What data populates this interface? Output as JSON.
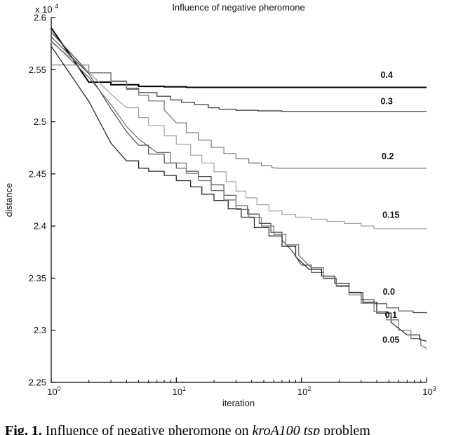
{
  "figure": {
    "title": "Influence of negative pheromone",
    "xlabel": "iteration",
    "ylabel": "distance",
    "y_multiplier": {
      "base": "x 10",
      "exp": "4"
    }
  },
  "caption": {
    "prefix": "Fig. 1.",
    "body": " Influence of negative pheromone on ",
    "emphasis": "kroA100 tsp",
    "tail": " problem"
  },
  "chart_data": {
    "type": "line",
    "title": "Influence of negative pheromone",
    "xlabel": "iteration",
    "ylabel": "distance",
    "x_scale": "log",
    "xlim": [
      1,
      1000
    ],
    "ylim": [
      2.25,
      2.6
    ],
    "y_unit_multiplier": 10000,
    "grid": false,
    "legend": "inline-labels-right",
    "x_ticks": [
      {
        "value": 1,
        "base": "10",
        "exp": "0"
      },
      {
        "value": 10,
        "base": "10",
        "exp": "1"
      },
      {
        "value": 100,
        "base": "10",
        "exp": "2"
      },
      {
        "value": 1000,
        "base": "10",
        "exp": "3"
      }
    ],
    "y_ticks": [
      {
        "value": 2.6,
        "label": "2.6"
      },
      {
        "value": 2.55,
        "label": "2.55"
      },
      {
        "value": 2.5,
        "label": "2.5"
      },
      {
        "value": 2.45,
        "label": "2.45"
      },
      {
        "value": 2.4,
        "label": "2.4"
      },
      {
        "value": 2.35,
        "label": "2.35"
      },
      {
        "value": 2.3,
        "label": "2.3"
      },
      {
        "value": 2.25,
        "label": "2.25"
      }
    ],
    "x_minor_subs": [
      2,
      3,
      4,
      5,
      6,
      7,
      8,
      9
    ],
    "series": [
      {
        "name": "0.4",
        "color": "#000000",
        "width": 2.0,
        "label_pos": {
          "x": 480,
          "y": 2.542
        },
        "points": [
          [
            1,
            2.59
          ],
          [
            2,
            2.538
          ],
          [
            3,
            2.5355
          ],
          [
            5,
            2.534
          ],
          [
            8,
            2.5335
          ],
          [
            12,
            2.533
          ],
          [
            1000,
            2.533
          ]
        ]
      },
      {
        "name": "0.3",
        "color": "#4d4d4d",
        "width": 1.4,
        "label_pos": {
          "x": 480,
          "y": 2.517
        },
        "points": [
          [
            1,
            2.586
          ],
          [
            2,
            2.547
          ],
          [
            3,
            2.539
          ],
          [
            4,
            2.532
          ],
          [
            5,
            2.528
          ],
          [
            7,
            2.5245
          ],
          [
            9,
            2.521
          ],
          [
            11,
            2.5185
          ],
          [
            14,
            2.5165
          ],
          [
            18,
            2.5135
          ],
          [
            22,
            2.512
          ],
          [
            30,
            2.511
          ],
          [
            45,
            2.5105
          ],
          [
            70,
            2.51
          ],
          [
            1000,
            2.51
          ]
        ]
      },
      {
        "name": "0.2",
        "color": "#7d7d7d",
        "width": 1.3,
        "label_pos": {
          "x": 490,
          "y": 2.464
        },
        "points": [
          [
            1,
            2.5545
          ],
          [
            2,
            2.547
          ],
          [
            3,
            2.5385
          ],
          [
            4,
            2.531
          ],
          [
            5,
            2.5255
          ],
          [
            6,
            2.52
          ],
          [
            8,
            2.5115
          ],
          [
            10,
            2.499
          ],
          [
            12,
            2.4895
          ],
          [
            15,
            2.4825
          ],
          [
            19,
            2.4755
          ],
          [
            24,
            2.4695
          ],
          [
            30,
            2.4645
          ],
          [
            38,
            2.4605
          ],
          [
            48,
            2.458
          ],
          [
            58,
            2.456
          ],
          [
            66,
            2.4555
          ],
          [
            1000,
            2.4555
          ]
        ]
      },
      {
        "name": "0.15",
        "color": "#a3a3a3",
        "width": 1.2,
        "label_pos": {
          "x": 520,
          "y": 2.408
        },
        "points": [
          [
            1,
            2.5765
          ],
          [
            2,
            2.5475
          ],
          [
            3,
            2.5265
          ],
          [
            4,
            2.5135
          ],
          [
            5,
            2.504
          ],
          [
            6,
            2.4965
          ],
          [
            8,
            2.4865
          ],
          [
            10,
            2.4785
          ],
          [
            13,
            2.468
          ],
          [
            16,
            2.4605
          ],
          [
            20,
            2.452
          ],
          [
            25,
            2.4425
          ],
          [
            30,
            2.4335
          ],
          [
            36,
            2.427
          ],
          [
            44,
            2.4205
          ],
          [
            55,
            2.4145
          ],
          [
            70,
            2.411
          ],
          [
            90,
            2.4085
          ],
          [
            120,
            2.4065
          ],
          [
            160,
            2.4045
          ],
          [
            220,
            2.4025
          ],
          [
            300,
            2.4
          ],
          [
            380,
            2.3975
          ],
          [
            1000,
            2.397
          ]
        ]
      },
      {
        "name": "0.0",
        "color": "#4a4a4a",
        "width": 1.2,
        "label_pos": {
          "x": 500,
          "y": 2.334
        },
        "points": [
          [
            1,
            2.5815
          ],
          [
            2,
            2.546
          ],
          [
            3,
            2.5125
          ],
          [
            4,
            2.4905
          ],
          [
            5,
            2.4775
          ],
          [
            6,
            2.469
          ],
          [
            8,
            2.4605
          ],
          [
            10,
            2.4555
          ],
          [
            12,
            2.4525
          ],
          [
            15,
            2.4475
          ],
          [
            19,
            2.4395
          ],
          [
            24,
            2.4295
          ],
          [
            30,
            2.4195
          ],
          [
            37,
            2.4115
          ],
          [
            46,
            2.4025
          ],
          [
            57,
            2.394
          ],
          [
            70,
            2.3865
          ],
          [
            85,
            2.3755
          ],
          [
            100,
            2.3625
          ],
          [
            120,
            2.3555
          ],
          [
            150,
            2.3495
          ],
          [
            190,
            2.343
          ],
          [
            240,
            2.3365
          ],
          [
            300,
            2.3295
          ],
          [
            380,
            2.3255
          ],
          [
            480,
            2.3215
          ],
          [
            600,
            2.3185
          ],
          [
            780,
            2.317
          ],
          [
            1000,
            2.3165
          ]
        ]
      },
      {
        "name": "0.1",
        "color": "#262626",
        "width": 1.3,
        "label_pos": {
          "x": 520,
          "y": 2.312
        },
        "points": [
          [
            1,
            2.5725
          ],
          [
            2,
            2.5195
          ],
          [
            3,
            2.4795
          ],
          [
            4,
            2.4625
          ],
          [
            5,
            2.4555
          ],
          [
            6,
            2.4525
          ],
          [
            8,
            2.4485
          ],
          [
            10,
            2.4435
          ],
          [
            13,
            2.4375
          ],
          [
            16,
            2.4305
          ],
          [
            20,
            2.4245
          ],
          [
            26,
            2.4165
          ],
          [
            33,
            2.4085
          ],
          [
            42,
            2.3985
          ],
          [
            55,
            2.3905
          ],
          [
            70,
            2.3805
          ],
          [
            90,
            2.3705
          ],
          [
            115,
            2.3585
          ],
          [
            145,
            2.352
          ],
          [
            185,
            2.345
          ],
          [
            240,
            2.336
          ],
          [
            310,
            2.327
          ],
          [
            400,
            2.3165
          ],
          [
            520,
            2.3075
          ],
          [
            700,
            2.2955
          ],
          [
            880,
            2.291
          ],
          [
            1000,
            2.2895
          ]
        ]
      },
      {
        "name": "0.05",
        "color": "#6b6b6b",
        "width": 1.2,
        "label_pos": {
          "x": 520,
          "y": 2.288
        },
        "points": [
          [
            1,
            2.578
          ],
          [
            2,
            2.5425
          ],
          [
            3,
            2.5165
          ],
          [
            4,
            2.4955
          ],
          [
            5,
            2.4835
          ],
          [
            7,
            2.4705
          ],
          [
            9,
            2.4605
          ],
          [
            12,
            2.4505
          ],
          [
            15,
            2.4435
          ],
          [
            19,
            2.434
          ],
          [
            24,
            2.425
          ],
          [
            30,
            2.416
          ],
          [
            38,
            2.408
          ],
          [
            48,
            2.4
          ],
          [
            60,
            2.392
          ],
          [
            75,
            2.382
          ],
          [
            95,
            2.372
          ],
          [
            120,
            2.36
          ],
          [
            150,
            2.35
          ],
          [
            190,
            2.342
          ],
          [
            240,
            2.334
          ],
          [
            300,
            2.326
          ],
          [
            380,
            2.318
          ],
          [
            480,
            2.31
          ],
          [
            600,
            2.3
          ],
          [
            750,
            2.292
          ],
          [
            900,
            2.2855
          ],
          [
            1000,
            2.2825
          ]
        ]
      }
    ]
  }
}
